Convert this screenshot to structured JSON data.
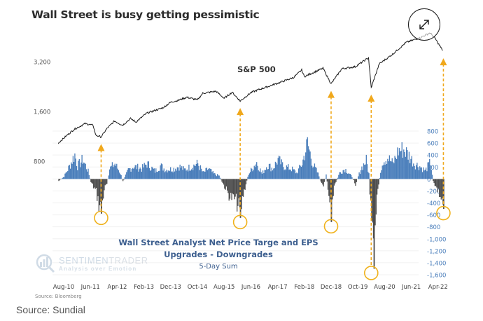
{
  "title": "Wall Street is busy getting pessimistic",
  "source_caption": "Source: Sundial",
  "expand_button": {
    "icon": "expand-arrows-icon"
  },
  "logo": {
    "name_part1": "SENTIMEN",
    "name_part2": "TRADER",
    "tagline": "Analysis over Emotion"
  },
  "chart_data": [
    {
      "type": "line",
      "title": "S&P 500",
      "yscale": "log",
      "ylabel": "",
      "y_ticks": [
        "3,200",
        "1,600",
        "800"
      ],
      "y_tick_values": [
        3200,
        1600,
        800
      ],
      "x_ticks": [
        "Aug-10",
        "Jun-11",
        "Apr-12",
        "Feb-13",
        "Dec-13",
        "Oct-14",
        "Aug-15",
        "Jun-16",
        "Apr-17",
        "Feb-18",
        "Dec-18",
        "Oct-19",
        "Aug-20",
        "Jun-21",
        "Apr-22"
      ],
      "series": [
        {
          "name": "S&P 500",
          "color": "#1a1a1a",
          "points": [
            [
              "2010-06",
              1030
            ],
            [
              "2010-09",
              1140
            ],
            [
              "2010-12",
              1250
            ],
            [
              "2011-04",
              1350
            ],
            [
              "2011-07",
              1320
            ],
            [
              "2011-08",
              1150
            ],
            [
              "2011-10",
              1120
            ],
            [
              "2011-12",
              1250
            ],
            [
              "2012-03",
              1400
            ],
            [
              "2012-06",
              1320
            ],
            [
              "2012-09",
              1450
            ],
            [
              "2012-11",
              1380
            ],
            [
              "2013-03",
              1560
            ],
            [
              "2013-06",
              1620
            ],
            [
              "2013-09",
              1680
            ],
            [
              "2013-12",
              1820
            ],
            [
              "2014-03",
              1870
            ],
            [
              "2014-06",
              1950
            ],
            [
              "2014-10",
              1880
            ],
            [
              "2014-12",
              2060
            ],
            [
              "2015-05",
              2120
            ],
            [
              "2015-08",
              1920
            ],
            [
              "2015-11",
              2090
            ],
            [
              "2016-02",
              1850
            ],
            [
              "2016-06",
              2080
            ],
            [
              "2016-09",
              2170
            ],
            [
              "2016-12",
              2250
            ],
            [
              "2017-05",
              2400
            ],
            [
              "2017-10",
              2570
            ],
            [
              "2018-01",
              2850
            ],
            [
              "2018-02",
              2600
            ],
            [
              "2018-09",
              2920
            ],
            [
              "2018-12",
              2350
            ],
            [
              "2019-04",
              2900
            ],
            [
              "2019-09",
              2980
            ],
            [
              "2020-02",
              3380
            ],
            [
              "2020-03",
              2230
            ],
            [
              "2020-06",
              3100
            ],
            [
              "2020-11",
              3550
            ],
            [
              "2021-04",
              4180
            ],
            [
              "2021-09",
              4450
            ],
            [
              "2022-01",
              4780
            ],
            [
              "2022-03",
              4400
            ],
            [
              "2022-05",
              3900
            ],
            [
              "2022-06",
              3700
            ]
          ]
        }
      ],
      "annotations": [
        {
          "type": "arrow",
          "date": "2011-10",
          "label": ""
        },
        {
          "type": "arrow",
          "date": "2016-02",
          "label": ""
        },
        {
          "type": "arrow",
          "date": "2018-12",
          "label": ""
        },
        {
          "type": "arrow",
          "date": "2020-03",
          "label": ""
        },
        {
          "type": "arrow",
          "date": "2022-06",
          "label": ""
        }
      ]
    },
    {
      "type": "area",
      "title": "Wall Street Analyst Net Price Targe and EPS",
      "title_line2": "Upgrades - Downgrades",
      "subtitle": "5-Day Sum",
      "source": "Source: Bloomberg",
      "ylim": [
        -1600,
        800
      ],
      "y_ticks": [
        "800",
        "600",
        "400",
        "200",
        "0",
        "-200",
        "-400",
        "-600",
        "-800",
        "-1,000",
        "-1,200",
        "-1,400",
        "-1,600"
      ],
      "y_tick_values": [
        800,
        600,
        400,
        200,
        0,
        -200,
        -400,
        -600,
        -800,
        -1000,
        -1200,
        -1400,
        -1600
      ],
      "positive_color": "#4a7ebb",
      "negative_color": "#4d4d4d",
      "grid": true,
      "series": [
        {
          "name": "Net Upgrades - Downgrades (5-Day Sum)",
          "points": [
            [
              "2010-06",
              -40
            ],
            [
              "2010-08",
              50
            ],
            [
              "2010-10",
              250
            ],
            [
              "2010-12",
              480
            ],
            [
              "2011-01",
              250
            ],
            [
              "2011-03",
              380
            ],
            [
              "2011-05",
              150
            ],
            [
              "2011-06",
              -60
            ],
            [
              "2011-08",
              -250
            ],
            [
              "2011-09",
              -500
            ],
            [
              "2011-10",
              -580
            ],
            [
              "2011-11",
              -200
            ],
            [
              "2011-12",
              -100
            ],
            [
              "2012-01",
              200
            ],
            [
              "2012-03",
              300
            ],
            [
              "2012-05",
              120
            ],
            [
              "2012-06",
              -50
            ],
            [
              "2012-08",
              180
            ],
            [
              "2012-10",
              250
            ],
            [
              "2013-01",
              200
            ],
            [
              "2013-03",
              300
            ],
            [
              "2013-06",
              150
            ],
            [
              "2013-08",
              260
            ],
            [
              "2013-10",
              180
            ],
            [
              "2014-01",
              200
            ],
            [
              "2014-03",
              250
            ],
            [
              "2014-05",
              180
            ],
            [
              "2014-07",
              230
            ],
            [
              "2014-10",
              300
            ],
            [
              "2014-12",
              120
            ],
            [
              "2015-02",
              200
            ],
            [
              "2015-04",
              100
            ],
            [
              "2015-06",
              60
            ],
            [
              "2015-08",
              -150
            ],
            [
              "2015-10",
              -350
            ],
            [
              "2015-12",
              -400
            ],
            [
              "2016-02",
              -650
            ],
            [
              "2016-03",
              -300
            ],
            [
              "2016-05",
              100
            ],
            [
              "2016-08",
              330
            ],
            [
              "2016-10",
              100
            ],
            [
              "2016-12",
              280
            ],
            [
              "2017-02",
              200
            ],
            [
              "2017-04",
              380
            ],
            [
              "2017-06",
              250
            ],
            [
              "2017-09",
              200
            ],
            [
              "2017-11",
              120
            ],
            [
              "2018-01",
              300
            ],
            [
              "2018-03",
              700
            ],
            [
              "2018-05",
              300
            ],
            [
              "2018-07",
              100
            ],
            [
              "2018-09",
              -180
            ],
            [
              "2018-10",
              100
            ],
            [
              "2018-12",
              -720
            ],
            [
              "2019-01",
              -150
            ],
            [
              "2019-03",
              120
            ],
            [
              "2019-05",
              200
            ],
            [
              "2019-07",
              90
            ],
            [
              "2019-09",
              -100
            ],
            [
              "2019-11",
              200
            ],
            [
              "2020-01",
              360
            ],
            [
              "2020-02",
              100
            ],
            [
              "2020-03",
              -1000
            ],
            [
              "2020-04",
              -1500
            ],
            [
              "2020-05",
              -300
            ],
            [
              "2020-07",
              350
            ],
            [
              "2020-09",
              420
            ],
            [
              "2020-11",
              300
            ],
            [
              "2021-01",
              560
            ],
            [
              "2021-03",
              580
            ],
            [
              "2021-05",
              460
            ],
            [
              "2021-07",
              300
            ],
            [
              "2021-09",
              250
            ],
            [
              "2021-11",
              160
            ],
            [
              "2022-01",
              330
            ],
            [
              "2022-02",
              -30
            ],
            [
              "2022-03",
              -150
            ],
            [
              "2022-04",
              -250
            ],
            [
              "2022-05",
              -380
            ],
            [
              "2022-06",
              -500
            ]
          ]
        }
      ],
      "circled_lows": [
        "2011-10",
        "2016-02",
        "2018-12",
        "2020-04",
        "2022-06"
      ]
    }
  ]
}
